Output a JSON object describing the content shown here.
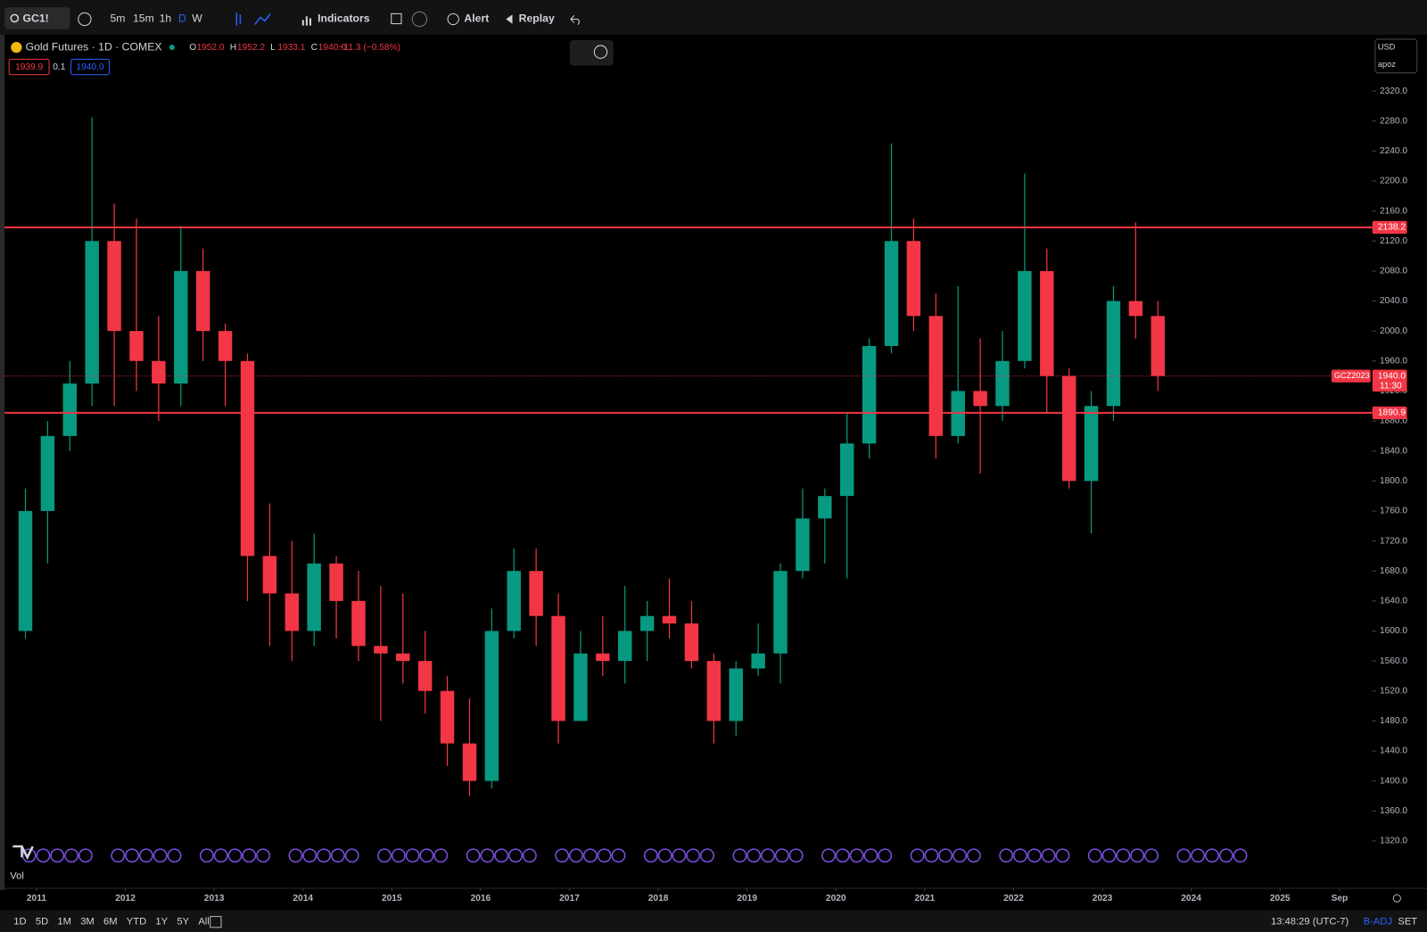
{
  "toolbar": {
    "symbol": "GC1!",
    "intervals": [
      "5m",
      "15m",
      "1h",
      "D",
      "W"
    ],
    "indicators": "Indicators",
    "alert": "Alert",
    "replay": "Replay"
  },
  "chart_header": {
    "title": "Gold Futures · 1D · COMEX",
    "ohlc": [
      {
        "key": "O",
        "value": "1952.0"
      },
      {
        "key": "H",
        "value": "1952.2"
      },
      {
        "key": "L",
        "value": "1933.1"
      },
      {
        "key": "C",
        "value": "1940.0"
      }
    ],
    "change": "−11.3 (−0.58%)",
    "bid": "1939.9",
    "spread": "0.1",
    "ask": "1940.0",
    "currency": "USD",
    "scale_mode": "apoz"
  },
  "chart_data": {
    "type": "candlestick",
    "x": [
      2010.75,
      2011,
      2011.25,
      2011.5,
      2011.75,
      2012,
      2012.25,
      2012.5,
      2012.75,
      2013,
      2013.25,
      2013.5,
      2013.75,
      2014,
      2014.25,
      2014.5,
      2014.75,
      2015,
      2015.25,
      2015.5,
      2015.75,
      2016,
      2016.25,
      2016.5,
      2016.75,
      2017,
      2017.25,
      2017.5,
      2017.75,
      2018,
      2018.25,
      2018.5,
      2018.75,
      2019,
      2019.25,
      2019.5,
      2019.75,
      2020,
      2020.25,
      2020.5,
      2020.75,
      2021,
      2021.25,
      2021.5,
      2021.75,
      2022,
      2022.25,
      2022.5,
      2022.75,
      2023,
      2023.25,
      2023.5
    ],
    "open": [
      1600,
      1760,
      1860,
      1930,
      2120,
      2000,
      1960,
      1930,
      2080,
      2000,
      1960,
      1700,
      1650,
      1600,
      1690,
      1640,
      1580,
      1570,
      1560,
      1520,
      1450,
      1400,
      1600,
      1680,
      1620,
      1480,
      1570,
      1560,
      1600,
      1620,
      1610,
      1560,
      1480,
      1550,
      1570,
      1680,
      1750,
      1780,
      1850,
      1980,
      2120,
      2020,
      1860,
      1920,
      1900,
      1960,
      2080,
      1940,
      1800,
      1900,
      2040,
      2020
    ],
    "high": [
      1790,
      1880,
      1960,
      2285,
      2170,
      2150,
      2020,
      2140,
      2110,
      2010,
      1970,
      1770,
      1720,
      1730,
      1700,
      1680,
      1660,
      1650,
      1600,
      1540,
      1510,
      1630,
      1710,
      1710,
      1650,
      1600,
      1620,
      1660,
      1640,
      1670,
      1640,
      1570,
      1560,
      1610,
      1690,
      1790,
      1790,
      1890,
      1990,
      2250,
      2150,
      2050,
      2060,
      1990,
      2000,
      2210,
      2110,
      1950,
      1920,
      2060,
      2145,
      2040
    ],
    "low": [
      1590,
      1690,
      1840,
      1900,
      1900,
      1920,
      1880,
      1900,
      1960,
      1900,
      1640,
      1580,
      1560,
      1580,
      1590,
      1560,
      1480,
      1530,
      1490,
      1420,
      1380,
      1390,
      1590,
      1580,
      1450,
      1480,
      1540,
      1530,
      1560,
      1590,
      1550,
      1450,
      1460,
      1540,
      1530,
      1670,
      1690,
      1670,
      1830,
      1970,
      2000,
      1830,
      1850,
      1810,
      1880,
      1950,
      1890,
      1790,
      1730,
      1880,
      1990,
      1920
    ],
    "close": [
      1760,
      1860,
      1930,
      2120,
      2000,
      1960,
      1930,
      2080,
      2000,
      1960,
      1700,
      1650,
      1600,
      1690,
      1640,
      1580,
      1570,
      1560,
      1520,
      1450,
      1400,
      1600,
      1680,
      1620,
      1480,
      1570,
      1560,
      1600,
      1620,
      1610,
      1560,
      1480,
      1550,
      1570,
      1680,
      1750,
      1780,
      1850,
      1980,
      2120,
      2020,
      1860,
      1920,
      1900,
      1960,
      2080,
      1940,
      1800,
      1900,
      2040,
      2020,
      1940
    ],
    "up_color": "#089981",
    "down_color": "#f23645",
    "xlim": [
      2010.64,
      2026.04
    ],
    "xticks": [
      2011,
      2012,
      2013,
      2014,
      2015,
      2016,
      2017,
      2018,
      2019,
      2020,
      2021,
      2022,
      2023,
      2024,
      2025,
      {
        "value": 2025.67,
        "label": "Sep"
      }
    ],
    "ylim": [
      1258.1,
      2392.8
    ],
    "yticks": [
      {
        "value": 1320,
        "label": "1320.0"
      },
      {
        "value": 1360,
        "label": "1360.0"
      },
      {
        "value": 1400,
        "label": "1400.0"
      },
      {
        "value": 1440,
        "label": "1440.0"
      },
      {
        "value": 1480,
        "label": "1480.0"
      },
      {
        "value": 1520,
        "label": "1520.0"
      },
      {
        "value": 1560,
        "label": "1560.0"
      },
      {
        "value": 1600,
        "label": "1600.0"
      },
      {
        "value": 1640,
        "label": "1640.0"
      },
      {
        "value": 1680,
        "label": "1680.0"
      },
      {
        "value": 1720,
        "label": "1720.0"
      },
      {
        "value": 1760,
        "label": "1760.0"
      },
      {
        "value": 1800,
        "label": "1800.0"
      },
      {
        "value": 1840,
        "label": "1840.0"
      },
      {
        "value": 1880,
        "label": "1880.0"
      },
      {
        "value": 1920,
        "label": "1920.0"
      },
      {
        "value": 1960,
        "label": "1960.0"
      },
      {
        "value": 2000,
        "label": "2000.0"
      },
      {
        "value": 2040,
        "label": "2040.0"
      },
      {
        "value": 2080,
        "label": "2080.0"
      },
      {
        "value": 2120,
        "label": "2120.0"
      },
      {
        "value": 2160,
        "label": "2160.0"
      },
      {
        "value": 2200,
        "label": "2200.0"
      },
      {
        "value": 2240,
        "label": "2240.0"
      },
      {
        "value": 2280,
        "label": "2280.0"
      },
      {
        "value": 2320,
        "label": "2320.0"
      }
    ],
    "levels": [
      2138.2,
      1890.9
    ],
    "level_color": "#f23645",
    "last_price": {
      "value": 1940,
      "label": "1940.0"
    },
    "last_price_symbol": "GCZ2023",
    "countdown": "11:30",
    "volume_label": "Vol"
  },
  "bottom_bar": {
    "ranges": [
      "1D",
      "5D",
      "1M",
      "3M",
      "6M",
      "YTD",
      "1Y",
      "5Y",
      "All"
    ],
    "clock": "13:48:29 (UTC-7)",
    "adjust": "B-ADJ",
    "session": "SET"
  }
}
